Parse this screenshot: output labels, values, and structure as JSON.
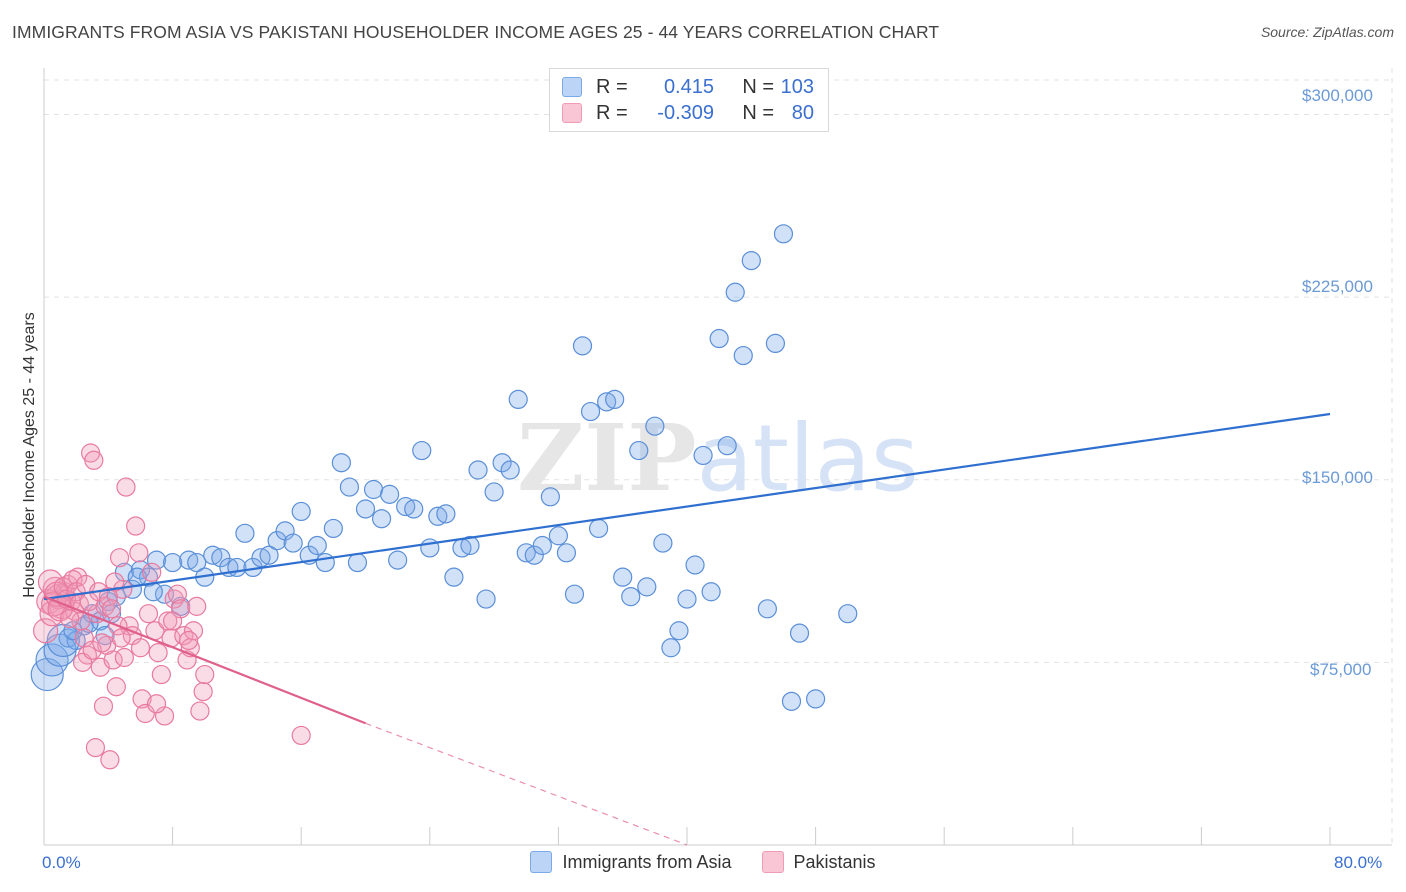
{
  "title": "IMMIGRANTS FROM ASIA VS PAKISTANI HOUSEHOLDER INCOME AGES 25 - 44 YEARS CORRELATION CHART",
  "source": "Source: ZipAtlas.com",
  "legend": {
    "rows": [
      {
        "r_label": "R =",
        "r_value": "0.415",
        "n_label": "N =",
        "n_value": "103",
        "color": "#7aaae8"
      },
      {
        "r_label": "R =",
        "r_value": "-0.309",
        "n_label": "N =",
        "n_value": "80",
        "color": "#f19cb7"
      }
    ]
  },
  "chart_data": {
    "type": "scatter",
    "title": "IMMIGRANTS FROM ASIA VS PAKISTANI HOUSEHOLDER INCOME AGES 25 - 44 YEARS CORRELATION CHART",
    "xlabel": "",
    "ylabel": "Householder Income Ages 25 - 44 years",
    "xlim": [
      0,
      80
    ],
    "ylim": [
      0,
      315000
    ],
    "x_tick_labels": [
      "0.0%",
      "80.0%"
    ],
    "y_ticks": [
      75000,
      150000,
      225000,
      300000
    ],
    "y_tick_labels": [
      "$75,000",
      "$150,000",
      "$225,000",
      "$300,000"
    ],
    "watermark": "ZIPatlas",
    "series": [
      {
        "name": "Immigrants from Asia",
        "color": "#7aaae8",
        "stroke": "#5a8fd8",
        "trend": {
          "x": [
            0,
            80
          ],
          "y": [
            101000,
            177000
          ],
          "color": "#2f6fd0"
        },
        "points": [
          [
            0.2,
            70000
          ],
          [
            0.5,
            76000
          ],
          [
            1.0,
            80000
          ],
          [
            1.5,
            85000
          ],
          [
            2.0,
            84000
          ],
          [
            2.5,
            90000
          ],
          [
            3.0,
            95000
          ],
          [
            3.5,
            92000
          ],
          [
            4.0,
            100000
          ],
          [
            4.5,
            102000
          ],
          [
            5.0,
            112000
          ],
          [
            5.5,
            105000
          ],
          [
            6.0,
            113000
          ],
          [
            6.5,
            110000
          ],
          [
            7.0,
            117000
          ],
          [
            7.5,
            103000
          ],
          [
            8.0,
            116000
          ],
          [
            8.5,
            98000
          ],
          [
            9.0,
            117000
          ],
          [
            9.5,
            116000
          ],
          [
            10.0,
            110000
          ],
          [
            10.5,
            119000
          ],
          [
            11.0,
            118000
          ],
          [
            11.5,
            114000
          ],
          [
            12.0,
            114000
          ],
          [
            12.5,
            128000
          ],
          [
            13.0,
            114000
          ],
          [
            13.5,
            118000
          ],
          [
            14.0,
            119000
          ],
          [
            14.5,
            125000
          ],
          [
            15.0,
            129000
          ],
          [
            15.5,
            124000
          ],
          [
            16.0,
            137000
          ],
          [
            16.5,
            119000
          ],
          [
            17.0,
            123000
          ],
          [
            17.5,
            116000
          ],
          [
            18.0,
            130000
          ],
          [
            18.5,
            157000
          ],
          [
            19.0,
            147000
          ],
          [
            19.5,
            116000
          ],
          [
            20.0,
            138000
          ],
          [
            20.5,
            146000
          ],
          [
            21.0,
            134000
          ],
          [
            21.5,
            144000
          ],
          [
            22.0,
            117000
          ],
          [
            22.5,
            139000
          ],
          [
            23.0,
            138000
          ],
          [
            23.5,
            162000
          ],
          [
            24.0,
            122000
          ],
          [
            24.5,
            135000
          ],
          [
            25.0,
            136000
          ],
          [
            25.5,
            110000
          ],
          [
            26.0,
            122000
          ],
          [
            26.5,
            123000
          ],
          [
            27.0,
            154000
          ],
          [
            27.5,
            101000
          ],
          [
            28.0,
            145000
          ],
          [
            28.5,
            157000
          ],
          [
            29.0,
            154000
          ],
          [
            29.5,
            183000
          ],
          [
            30.0,
            120000
          ],
          [
            30.5,
            119000
          ],
          [
            31.0,
            123000
          ],
          [
            31.5,
            143000
          ],
          [
            32.0,
            127000
          ],
          [
            32.5,
            120000
          ],
          [
            33.0,
            103000
          ],
          [
            33.5,
            205000
          ],
          [
            34.0,
            178000
          ],
          [
            34.5,
            130000
          ],
          [
            35.0,
            182000
          ],
          [
            35.5,
            183000
          ],
          [
            36.0,
            110000
          ],
          [
            36.5,
            102000
          ],
          [
            37.0,
            162000
          ],
          [
            37.5,
            106000
          ],
          [
            38.0,
            172000
          ],
          [
            38.5,
            124000
          ],
          [
            39.0,
            81000
          ],
          [
            39.5,
            88000
          ],
          [
            40.0,
            101000
          ],
          [
            40.5,
            115000
          ],
          [
            41.0,
            160000
          ],
          [
            41.5,
            104000
          ],
          [
            42.0,
            208000
          ],
          [
            42.5,
            164000
          ],
          [
            43.0,
            227000
          ],
          [
            43.5,
            201000
          ],
          [
            44.0,
            240000
          ],
          [
            45.0,
            97000
          ],
          [
            45.5,
            206000
          ],
          [
            46.0,
            251000
          ],
          [
            46.5,
            59000
          ],
          [
            47.0,
            87000
          ],
          [
            48.0,
            60000
          ],
          [
            50.0,
            95000
          ],
          [
            1.2,
            84000
          ],
          [
            2.8,
            91000
          ],
          [
            3.8,
            86000
          ],
          [
            6.8,
            104000
          ],
          [
            1.8,
            88000
          ],
          [
            4.2,
            95000
          ],
          [
            5.8,
            110000
          ]
        ]
      },
      {
        "name": "Pakistanis",
        "color": "#f19cb7",
        "stroke": "#e87a9f",
        "trend": {
          "x": [
            0,
            20
          ],
          "y": [
            102000,
            50000
          ],
          "color": "#e0608c"
        },
        "trend_dashed": {
          "x": [
            20,
            40
          ],
          "y": [
            50000,
            0
          ]
        },
        "points": [
          [
            0.1,
            88000
          ],
          [
            0.3,
            100000
          ],
          [
            0.5,
            95000
          ],
          [
            0.7,
            105000
          ],
          [
            0.9,
            102000
          ],
          [
            1.1,
            98000
          ],
          [
            1.3,
            104000
          ],
          [
            1.5,
            107000
          ],
          [
            1.7,
            100000
          ],
          [
            1.9,
            96000
          ],
          [
            2.1,
            110000
          ],
          [
            2.3,
            92000
          ],
          [
            2.5,
            85000
          ],
          [
            2.7,
            78000
          ],
          [
            2.9,
            161000
          ],
          [
            3.1,
            158000
          ],
          [
            3.3,
            95000
          ],
          [
            3.5,
            73000
          ],
          [
            3.7,
            57000
          ],
          [
            3.9,
            82000
          ],
          [
            4.1,
            35000
          ],
          [
            4.3,
            76000
          ],
          [
            4.5,
            65000
          ],
          [
            4.7,
            118000
          ],
          [
            4.9,
            105000
          ],
          [
            5.1,
            147000
          ],
          [
            5.3,
            90000
          ],
          [
            5.5,
            86000
          ],
          [
            5.7,
            131000
          ],
          [
            5.9,
            120000
          ],
          [
            6.1,
            60000
          ],
          [
            6.3,
            54000
          ],
          [
            6.5,
            95000
          ],
          [
            6.7,
            112000
          ],
          [
            6.9,
            88000
          ],
          [
            7.1,
            79000
          ],
          [
            7.3,
            70000
          ],
          [
            7.5,
            53000
          ],
          [
            7.7,
            92000
          ],
          [
            7.9,
            85000
          ],
          [
            8.1,
            101000
          ],
          [
            8.3,
            103000
          ],
          [
            8.5,
            97000
          ],
          [
            8.7,
            86000
          ],
          [
            8.9,
            76000
          ],
          [
            9.1,
            81000
          ],
          [
            9.3,
            88000
          ],
          [
            9.5,
            98000
          ],
          [
            9.7,
            55000
          ],
          [
            9.9,
            63000
          ],
          [
            0.4,
            108000
          ],
          [
            0.6,
            99000
          ],
          [
            0.8,
            103000
          ],
          [
            1.0,
            97000
          ],
          [
            1.2,
            106000
          ],
          [
            1.4,
            101000
          ],
          [
            1.6,
            93000
          ],
          [
            1.8,
            109000
          ],
          [
            2.0,
            104000
          ],
          [
            2.2,
            99000
          ],
          [
            2.4,
            75000
          ],
          [
            2.6,
            107000
          ],
          [
            2.8,
            100000
          ],
          [
            3.0,
            80000
          ],
          [
            3.2,
            40000
          ],
          [
            3.4,
            104000
          ],
          [
            3.6,
            83000
          ],
          [
            3.8,
            98000
          ],
          [
            4.0,
            102000
          ],
          [
            4.2,
            97000
          ],
          [
            4.4,
            108000
          ],
          [
            4.6,
            90000
          ],
          [
            4.8,
            85000
          ],
          [
            5.0,
            77000
          ],
          [
            6.0,
            81000
          ],
          [
            7.0,
            58000
          ],
          [
            8.0,
            92000
          ],
          [
            9.0,
            84000
          ],
          [
            10.0,
            70000
          ],
          [
            16.0,
            45000
          ]
        ]
      }
    ]
  }
}
